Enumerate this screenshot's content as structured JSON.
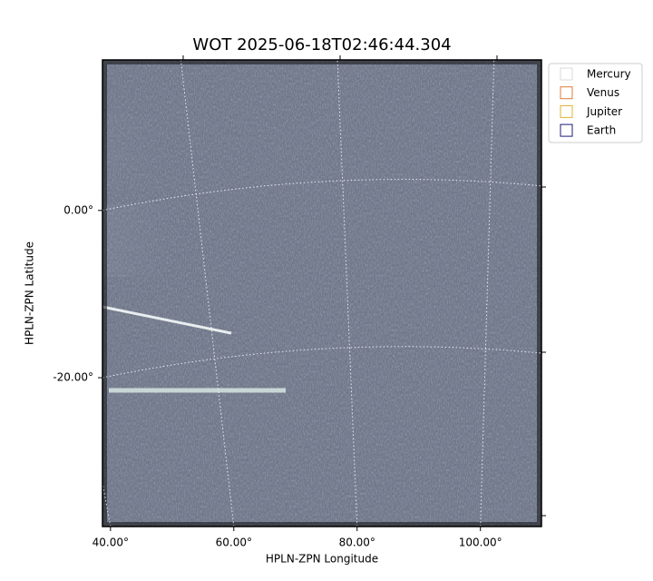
{
  "chart_data": {
    "type": "image",
    "title": "WOT 2025-06-18T02:46:44.304",
    "x_label": "HPLN-ZPN Longitude",
    "y_label": "HPLN-ZPN Latitude",
    "xlim": [
      38.7,
      109.9
    ],
    "ylim": [
      -37.8,
      18.0
    ],
    "xticks": [
      {
        "value": 40,
        "label": "40.00°"
      },
      {
        "value": 60,
        "label": "60.00°"
      },
      {
        "value": 80,
        "label": "80.00°"
      },
      {
        "value": 100,
        "label": "100.00°"
      }
    ],
    "yticks": [
      {
        "value": 0,
        "label": "0.00°"
      },
      {
        "value": -20,
        "label": "-20.00°"
      }
    ],
    "grid": true,
    "legend_position": "upper-right",
    "series": [
      {
        "name": "Mercury",
        "color": "#d9d9d9"
      },
      {
        "name": "Venus",
        "color": "#e07b39"
      },
      {
        "name": "Jupiter",
        "color": "#e0b030"
      },
      {
        "name": "Earth",
        "color": "#1c1c7a"
      }
    ]
  }
}
